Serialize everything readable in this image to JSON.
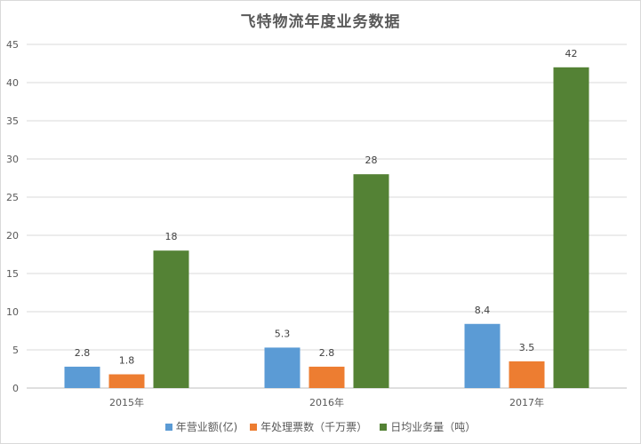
{
  "chart_data": {
    "type": "bar",
    "title": "飞特物流年度业务数据",
    "xlabel": "",
    "ylabel": "",
    "ylim": [
      0,
      45
    ],
    "yticks": [
      0,
      5,
      10,
      15,
      20,
      25,
      30,
      35,
      40,
      45
    ],
    "categories": [
      "2015年",
      "2016年",
      "2017年"
    ],
    "series": [
      {
        "name": "年营业额(亿)",
        "color": "#5b9bd5",
        "values": [
          2.8,
          5.3,
          8.4
        ]
      },
      {
        "name": "年处理票数（千万票）",
        "color": "#ed7d31",
        "values": [
          1.8,
          2.8,
          3.5
        ]
      },
      {
        "name": "日均业务量（吨）",
        "color": "#548235",
        "values": [
          18,
          28,
          42
        ]
      }
    ],
    "grid": true,
    "legend_position": "bottom"
  }
}
